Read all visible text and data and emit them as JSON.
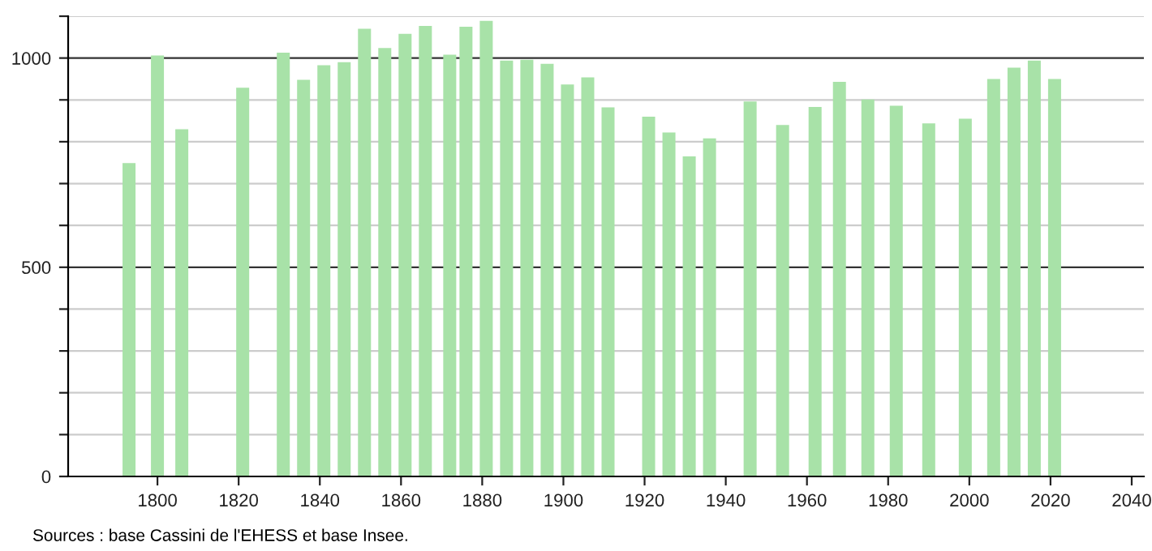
{
  "chart_data": {
    "type": "bar",
    "x": [
      1793,
      1800,
      1806,
      1821,
      1831,
      1836,
      1841,
      1846,
      1851,
      1856,
      1861,
      1866,
      1872,
      1876,
      1881,
      1886,
      1891,
      1896,
      1901,
      1906,
      1911,
      1921,
      1926,
      1931,
      1936,
      1946,
      1954,
      1962,
      1968,
      1975,
      1982,
      1990,
      1999,
      2006,
      2011,
      2016,
      2021
    ],
    "values": [
      749,
      1006,
      830,
      929,
      1013,
      948,
      983,
      990,
      1070,
      1024,
      1058,
      1077,
      1008,
      1075,
      1089,
      994,
      996,
      986,
      937,
      954,
      882,
      860,
      822,
      765,
      808,
      896,
      840,
      883,
      943,
      901,
      886,
      844,
      855,
      950,
      977,
      994,
      950
    ],
    "color": "#a8e2a8",
    "xlim": [
      1778,
      2043
    ],
    "xticks": [
      1800,
      1820,
      1840,
      1860,
      1880,
      1900,
      1920,
      1940,
      1960,
      1980,
      2000,
      2020,
      2040
    ],
    "ylim": [
      0,
      1100
    ],
    "yticks": [
      0,
      {
        "value": 100,
        "label": null
      },
      {
        "value": 200,
        "label": null
      },
      {
        "value": 300,
        "label": null
      },
      {
        "value": 400,
        "label": null
      },
      500,
      {
        "value": 600,
        "label": null
      },
      {
        "value": 700,
        "label": null
      },
      {
        "value": 800,
        "label": null
      },
      {
        "value": 900,
        "label": null
      },
      1000,
      {
        "value": 1100,
        "label": null
      }
    ],
    "grid": "y",
    "annotations": [
      "Sources : base Cassini de l'EHESS et base Insee."
    ]
  }
}
